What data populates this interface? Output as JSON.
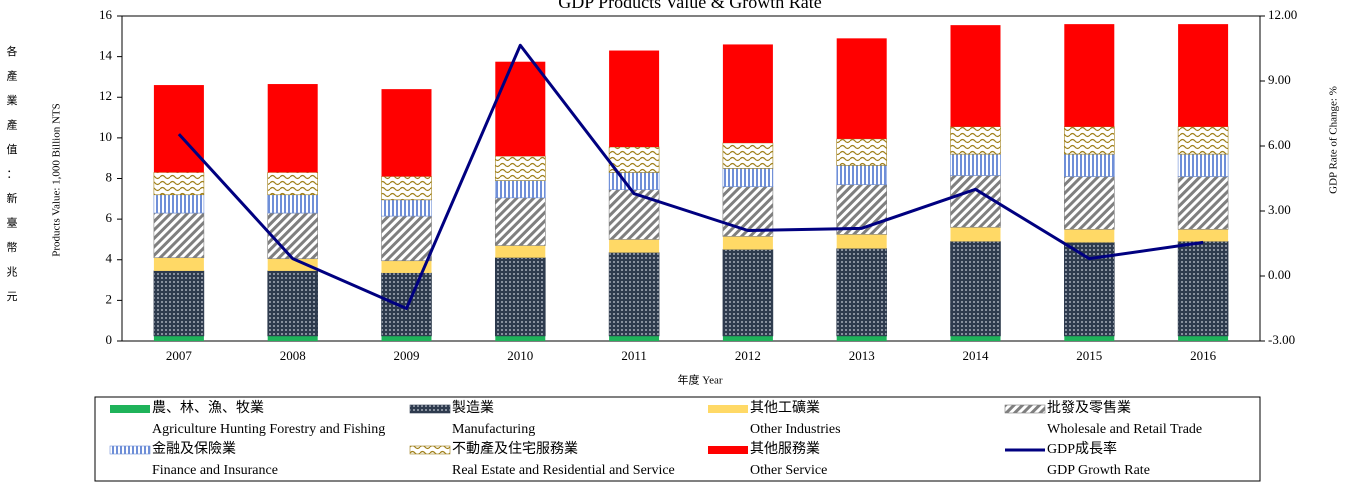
{
  "chart_data": {
    "type": "bar",
    "title": "GDP Products Value & Growth Rate",
    "ylabel": "Products Value: 1,000 Billion NTS",
    "ylabel_cn": "各產業產值：新臺幣兆元",
    "y2label": "GDP Rate of Change: %",
    "xlabel": "年度 Year",
    "categories": [
      "2007",
      "2008",
      "2009",
      "2010",
      "2011",
      "2012",
      "2013",
      "2014",
      "2015",
      "2016"
    ],
    "ylim": [
      0,
      16
    ],
    "yticks": [
      0,
      2,
      4,
      6,
      8,
      10,
      12,
      14,
      16
    ],
    "y2lim": [
      -3,
      12
    ],
    "y2ticks": [
      {
        "value": -3,
        "label": "-3.00"
      },
      {
        "value": 0,
        "label": "0.00"
      },
      {
        "value": 3,
        "label": "3.00"
      },
      {
        "value": 6,
        "label": "6.00"
      },
      {
        "value": 9,
        "label": "9.00"
      },
      {
        "value": 12,
        "label": "12.00"
      }
    ],
    "stacked": true,
    "series": [
      {
        "name": "農、林、漁、牧業",
        "label_en": "Agriculture Hunting Forestry and Fishing",
        "color": "#1fb35a",
        "pattern": "solid",
        "values": [
          0.25,
          0.25,
          0.25,
          0.25,
          0.25,
          0.25,
          0.25,
          0.25,
          0.25,
          0.25
        ]
      },
      {
        "name": "製造業",
        "label_en": "Manufacturing",
        "color": "#2e3b4e",
        "pattern": "dots",
        "values": [
          3.2,
          3.2,
          3.1,
          3.85,
          4.1,
          4.25,
          4.3,
          4.65,
          4.6,
          4.65
        ]
      },
      {
        "name": "其他工礦業",
        "label_en": "Other Industries",
        "color": "#ffd966",
        "pattern": "solid",
        "values": [
          0.65,
          0.6,
          0.6,
          0.6,
          0.65,
          0.65,
          0.7,
          0.7,
          0.65,
          0.6
        ]
      },
      {
        "name": "批發及零售業",
        "label_en": "Wholesale and Retail Trade",
        "color": "#7f7f7f",
        "pattern": "hatch",
        "values": [
          2.2,
          2.25,
          2.2,
          2.35,
          2.45,
          2.45,
          2.45,
          2.55,
          2.6,
          2.6
        ]
      },
      {
        "name": "金融及保險業",
        "label_en": "Finance and Insurance",
        "color": "#6f8fd8",
        "pattern": "vstripe",
        "values": [
          0.9,
          0.9,
          0.8,
          0.85,
          0.85,
          0.9,
          0.95,
          1.05,
          1.1,
          1.1
        ]
      },
      {
        "name": "不動產及住宅服務業",
        "label_en": "Real Estate and Residential and Service",
        "color": "#a0801a",
        "pattern": "wave",
        "values": [
          1.1,
          1.1,
          1.15,
          1.2,
          1.25,
          1.25,
          1.3,
          1.35,
          1.35,
          1.35
        ]
      },
      {
        "name": "其他服務業",
        "label_en": "Other Service",
        "color": "#ff0000",
        "pattern": "solid",
        "values": [
          4.3,
          4.35,
          4.3,
          4.65,
          4.75,
          4.85,
          4.95,
          5.0,
          5.05,
          5.05
        ]
      },
      {
        "name": "GDP成長率",
        "label_en": "GDP Growth Rate",
        "color": "#000080",
        "type": "line",
        "axis": "y2",
        "values": [
          6.55,
          0.8,
          -1.5,
          10.65,
          3.8,
          2.1,
          2.2,
          4.0,
          0.8,
          1.55
        ]
      }
    ]
  }
}
